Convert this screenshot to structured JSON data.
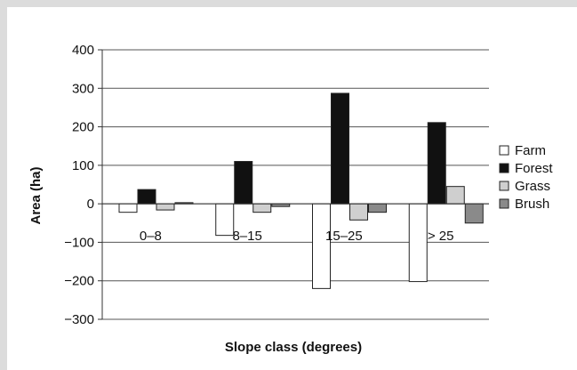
{
  "chart_data": {
    "type": "bar",
    "title": "",
    "xlabel": "Slope class (degrees)",
    "ylabel": "Area (ha)",
    "ylim": [
      -300,
      400
    ],
    "yticks": [
      -300,
      -200,
      -100,
      0,
      100,
      200,
      300,
      400
    ],
    "ytick_labels": [
      "−300",
      "−200",
      "−100",
      "0",
      "100",
      "200",
      "300",
      "400"
    ],
    "categories": [
      "0–8",
      "8–15",
      "15–25",
      "> 25"
    ],
    "grid": "horizontal",
    "legend_position": "right",
    "series": [
      {
        "name": "Farm",
        "color": "#ffffff",
        "values": [
          -22,
          -82,
          -220,
          -202
        ]
      },
      {
        "name": "Forest",
        "color": "#111111",
        "values": [
          37,
          110,
          287,
          211
        ]
      },
      {
        "name": "Grass",
        "color": "#cfcfcf",
        "values": [
          -16,
          -22,
          -42,
          45
        ]
      },
      {
        "name": "Brush",
        "color": "#8a8a8a",
        "values": [
          3,
          -7,
          -22,
          -50
        ]
      }
    ]
  }
}
